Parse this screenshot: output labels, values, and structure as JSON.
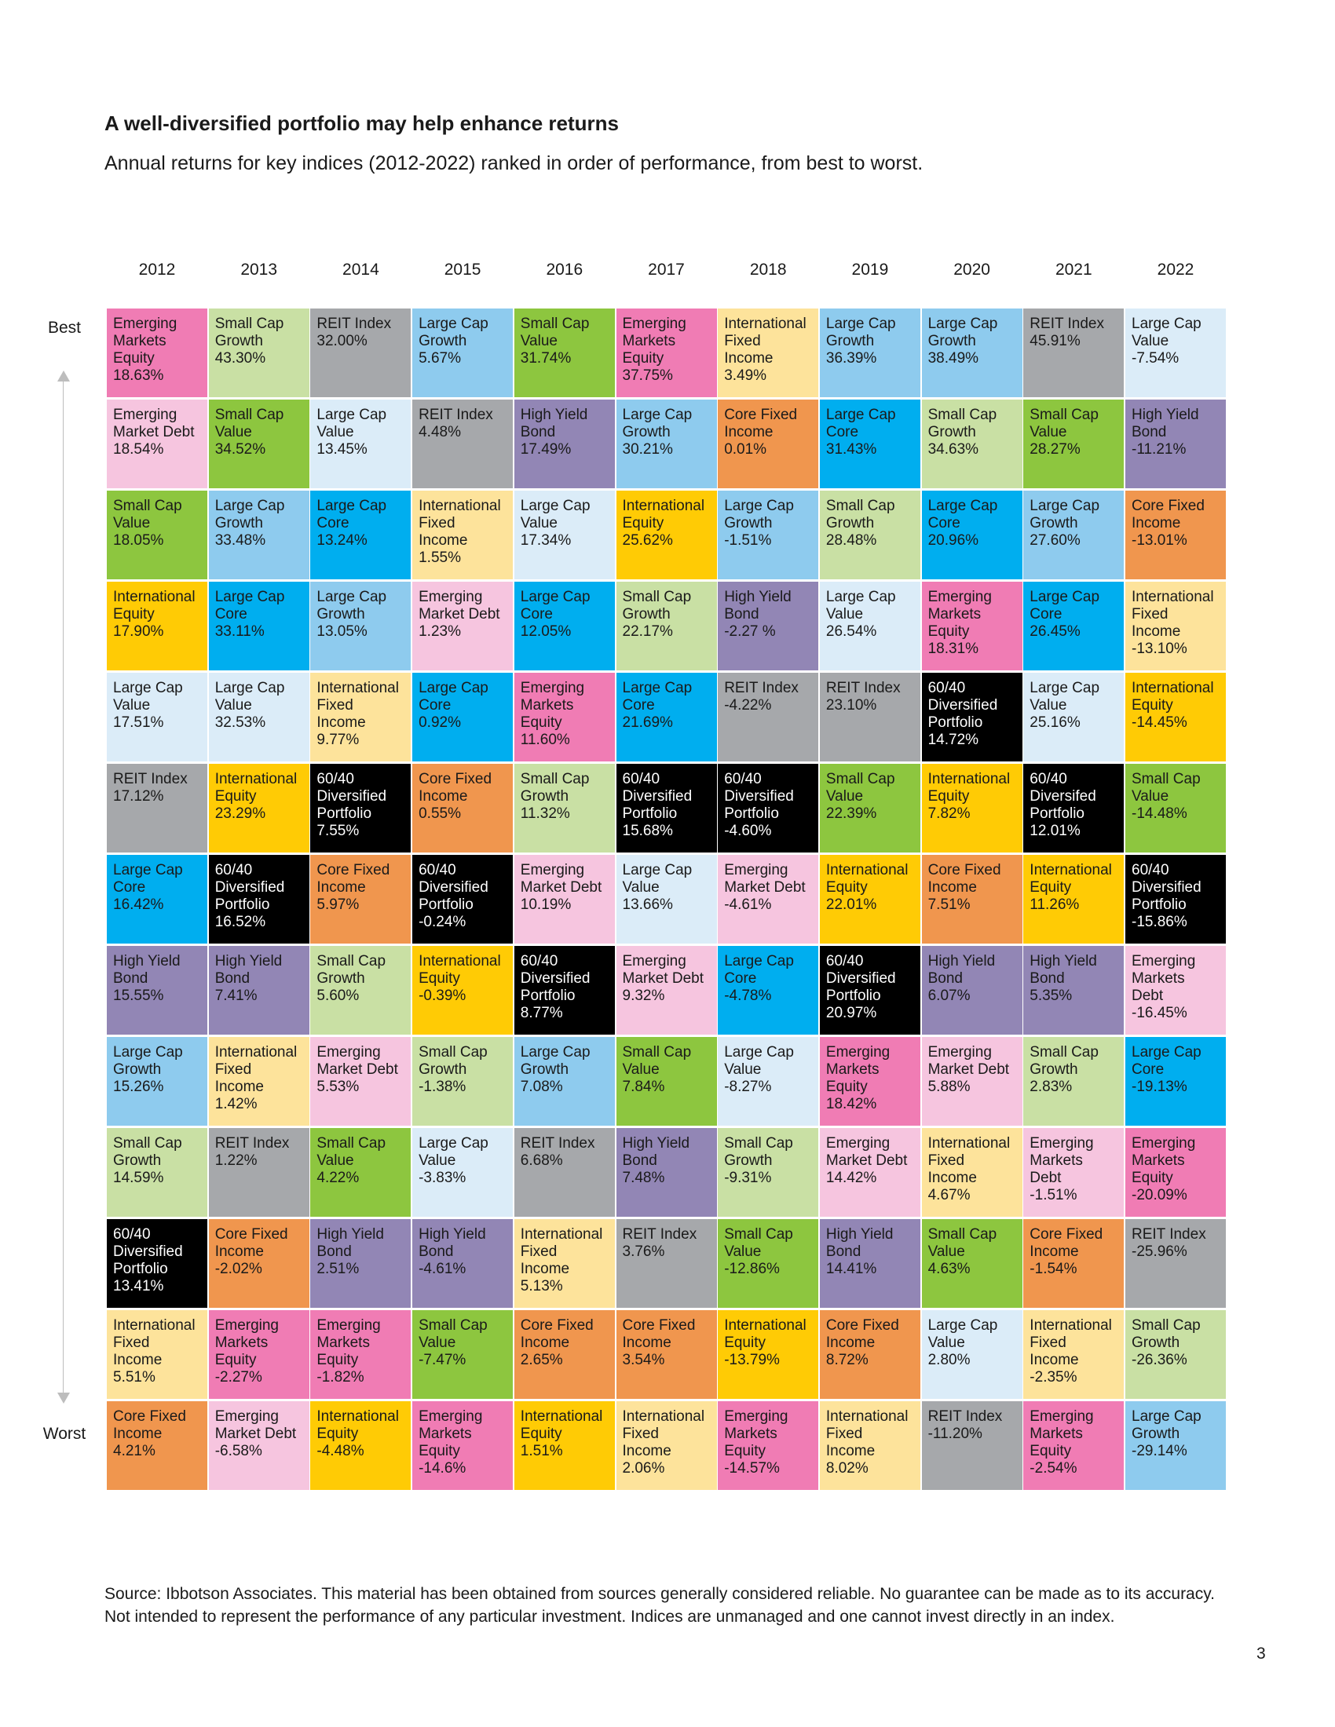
{
  "header": {
    "title": "A well-diversified portfolio may help enhance returns",
    "subtitle": "Annual returns for key indices (2012-2022) ranked in order of performance, from best to worst."
  },
  "rank_labels": {
    "best": "Best",
    "worst": "Worst"
  },
  "footnote": {
    "line1": "Source: Ibbotson Associates. This material has been obtained from sources generally considered reliable. No guarantee can be made as to its accuracy.",
    "line2": "Not intended to represent the performance of any particular investment. Indices are unmanaged and one cannot invest directly in an index."
  },
  "page_number": "3",
  "colors": {
    "em_eq": "#f07cb4",
    "em_debt": "#f6c5df",
    "sc_growth": "#c9e0a4",
    "sc_value": "#8dc63f",
    "reit": "#a6a8ab",
    "lc_growth": "#8ecbee",
    "lc_value": "#dbecf8",
    "lc_core": "#00aeef",
    "intl_fi": "#fde39b",
    "intl_eq": "#ffcb05",
    "core_fi": "#f0964e",
    "hy": "#9286b5",
    "div": "#000000"
  },
  "chart_data": {
    "type": "table",
    "title": "A well-diversified portfolio may help enhance returns",
    "subtitle": "Annual returns for key indices (2012-2022) ranked in order of performance, from best to worst.",
    "years": [
      "2012",
      "2013",
      "2014",
      "2015",
      "2016",
      "2017",
      "2018",
      "2019",
      "2020",
      "2021",
      "2022"
    ],
    "columns": [
      [
        {
          "name": "Emerging\nMarkets\nEquity",
          "value": "18.63%",
          "cat": "em_eq"
        },
        {
          "name": "Emerging\nMarket Debt",
          "value": "18.54%",
          "cat": "em_debt"
        },
        {
          "name": "Small Cap\nValue",
          "value": "18.05%",
          "cat": "sc_value"
        },
        {
          "name": "International\nEquity",
          "value": "17.90%",
          "cat": "intl_eq"
        },
        {
          "name": "Large Cap\nValue",
          "value": "17.51%",
          "cat": "lc_value"
        },
        {
          "name": "REIT Index",
          "value": "17.12%",
          "cat": "reit"
        },
        {
          "name": "Large Cap\nCore",
          "value": "16.42%",
          "cat": "lc_core"
        },
        {
          "name": "High Yield\nBond",
          "value": "15.55%",
          "cat": "hy"
        },
        {
          "name": "Large Cap\nGrowth",
          "value": "15.26%",
          "cat": "lc_growth"
        },
        {
          "name": "Small Cap\nGrowth",
          "value": "14.59%",
          "cat": "sc_growth"
        },
        {
          "name": "60/40\nDiversified\nPortfolio",
          "value": "13.41%",
          "cat": "div"
        },
        {
          "name": "International\nFixed Income",
          "value": "5.51%",
          "cat": "intl_fi"
        },
        {
          "name": "Core Fixed\nIncome",
          "value": "4.21%",
          "cat": "core_fi"
        }
      ],
      [
        {
          "name": "Small Cap\nGrowth",
          "value": "43.30%",
          "cat": "sc_growth"
        },
        {
          "name": "Small Cap\nValue",
          "value": "34.52%",
          "cat": "sc_value"
        },
        {
          "name": "Large Cap\nGrowth",
          "value": "33.48%",
          "cat": "lc_growth"
        },
        {
          "name": "Large Cap\nCore",
          "value": "33.11%",
          "cat": "lc_core"
        },
        {
          "name": "Large Cap\nValue",
          "value": "32.53%",
          "cat": "lc_value"
        },
        {
          "name": "International\nEquity",
          "value": "23.29%",
          "cat": "intl_eq"
        },
        {
          "name": "60/40\nDiversified\nPortfolio",
          "value": "16.52%",
          "cat": "div"
        },
        {
          "name": "High Yield\nBond",
          "value": "7.41%",
          "cat": "hy"
        },
        {
          "name": "International\nFixed Income",
          "value": "1.42%",
          "cat": "intl_fi"
        },
        {
          "name": "REIT Index",
          "value": "1.22%",
          "cat": "reit"
        },
        {
          "name": "Core Fixed\nIncome",
          "value": "-2.02%",
          "cat": "core_fi"
        },
        {
          "name": "Emerging\nMarkets\nEquity",
          "value": "-2.27%",
          "cat": "em_eq"
        },
        {
          "name": "Emerging\nMarket Debt",
          "value": "-6.58%",
          "cat": "em_debt"
        }
      ],
      [
        {
          "name": "REIT Index",
          "value": "32.00%",
          "cat": "reit"
        },
        {
          "name": "Large Cap\nValue 13.45%",
          "value": "",
          "cat": "lc_value"
        },
        {
          "name": "Large Cap\nCore",
          "value": "13.24%",
          "cat": "lc_core"
        },
        {
          "name": "Large Cap\nGrowth",
          "value": "13.05%",
          "cat": "lc_growth"
        },
        {
          "name": "International\nFixed Income",
          "value": "9.77%",
          "cat": "intl_fi"
        },
        {
          "name": "60/40\nDiversified\nPortfolio",
          "value": "7.55%",
          "cat": "div"
        },
        {
          "name": "Core Fixed\nIncome",
          "value": "5.97%",
          "cat": "core_fi"
        },
        {
          "name": "Small Cap\nGrowth",
          "value": "5.60%",
          "cat": "sc_growth"
        },
        {
          "name": "Emerging\nMarket Debt",
          "value": "5.53%",
          "cat": "em_debt"
        },
        {
          "name": "Small Cap\nValue",
          "value": "4.22%",
          "cat": "sc_value"
        },
        {
          "name": "High Yield\nBond",
          "value": "2.51%",
          "cat": "hy"
        },
        {
          "name": "Emerging\nMarkets\nEquity",
          "value": "-1.82%",
          "cat": "em_eq"
        },
        {
          "name": "International\nEquity",
          "value": "-4.48%",
          "cat": "intl_eq"
        }
      ],
      [
        {
          "name": "Large Cap\nGrowth",
          "value": "5.67%",
          "cat": "lc_growth"
        },
        {
          "name": "REIT Index",
          "value": "4.48%",
          "cat": "reit"
        },
        {
          "name": "International\nFixed Income",
          "value": "1.55%",
          "cat": "intl_fi"
        },
        {
          "name": "Emerging\nMarket Debt",
          "value": "1.23%",
          "cat": "em_debt"
        },
        {
          "name": "Large Cap\nCore",
          "value": "0.92%",
          "cat": "lc_core"
        },
        {
          "name": "Core Fixed\nIncome",
          "value": "0.55%",
          "cat": "core_fi"
        },
        {
          "name": "60/40\nDiversified\nPortfolio",
          "value": "-0.24%",
          "cat": "div"
        },
        {
          "name": "International\nEquity",
          "value": "-0.39%",
          "cat": "intl_eq"
        },
        {
          "name": "Small Cap\nGrowth",
          "value": "-1.38%",
          "cat": "sc_growth"
        },
        {
          "name": "Large Cap\nValue",
          "value": "-3.83%",
          "cat": "lc_value"
        },
        {
          "name": "High Yield\nBond",
          "value": "-4.61%",
          "cat": "hy"
        },
        {
          "name": "Small Cap\nValue",
          "value": "-7.47%",
          "cat": "sc_value"
        },
        {
          "name": "Emerging\nMarkets\nEquity",
          "value": "-14.6%",
          "cat": "em_eq"
        }
      ],
      [
        {
          "name": "Small Cap\nValue",
          "value": "31.74%",
          "cat": "sc_value"
        },
        {
          "name": "High Yield\nBond",
          "value": "17.49%",
          "cat": "hy"
        },
        {
          "name": "Large Cap\nValue",
          "value": "17.34%",
          "cat": "lc_value"
        },
        {
          "name": "Large Cap\nCore",
          "value": "12.05%",
          "cat": "lc_core"
        },
        {
          "name": "Emerging\nMarkets\nEquity",
          "value": "11.60%",
          "cat": "em_eq"
        },
        {
          "name": "Small Cap\nGrowth",
          "value": "11.32%",
          "cat": "sc_growth"
        },
        {
          "name": "Emerging\nMarket Debt",
          "value": "10.19%",
          "cat": "em_debt"
        },
        {
          "name": "60/40\nDiversified\nPortfolio",
          "value": "8.77%",
          "cat": "div"
        },
        {
          "name": "Large Cap\nGrowth",
          "value": "7.08%",
          "cat": "lc_growth"
        },
        {
          "name": "REIT Index",
          "value": "6.68%",
          "cat": "reit"
        },
        {
          "name": "International\nFixed Income",
          "value": "5.13%",
          "cat": "intl_fi"
        },
        {
          "name": "Core Fixed\nIncome",
          "value": "2.65%",
          "cat": "core_fi"
        },
        {
          "name": "International\nEquity",
          "value": "1.51%",
          "cat": "intl_eq"
        }
      ],
      [
        {
          "name": "Emerging\nMarkets\nEquity",
          "value": "37.75%",
          "cat": "em_eq"
        },
        {
          "name": "Large Cap\nGrowth",
          "value": "30.21%",
          "cat": "lc_growth"
        },
        {
          "name": "International\nEquity",
          "value": "25.62%",
          "cat": "intl_eq"
        },
        {
          "name": "Small Cap\nGrowth",
          "value": "22.17%",
          "cat": "sc_growth"
        },
        {
          "name": "Large Cap\nCore",
          "value": "21.69%",
          "cat": "lc_core"
        },
        {
          "name": "60/40\nDiversified\nPortfolio",
          "value": "15.68%",
          "cat": "div"
        },
        {
          "name": "Large Cap\nValue",
          "value": "13.66%",
          "cat": "lc_value"
        },
        {
          "name": "Emerging\nMarket Debt",
          "value": "9.32%",
          "cat": "em_debt"
        },
        {
          "name": "Small Cap\nValue",
          "value": "7.84%",
          "cat": "sc_value"
        },
        {
          "name": "High Yield\nBond",
          "value": "7.48%",
          "cat": "hy"
        },
        {
          "name": "REIT Index",
          "value": "3.76%",
          "cat": "reit"
        },
        {
          "name": "Core Fixed\nIncome",
          "value": "3.54%",
          "cat": "core_fi"
        },
        {
          "name": "International\nFixed Income",
          "value": "2.06%",
          "cat": "intl_fi"
        }
      ],
      [
        {
          "name": "International\nFixed Income",
          "value": "3.49%",
          "cat": "intl_fi"
        },
        {
          "name": "Core Fixed\nIncome",
          "value": "0.01%",
          "cat": "core_fi"
        },
        {
          "name": "Large Cap\nGrowth",
          "value": "-1.51%",
          "cat": "lc_growth"
        },
        {
          "name": "High Yield\nBond",
          "value": "-2.27 %",
          "cat": "hy"
        },
        {
          "name": "REIT Index",
          "value": "-4.22%",
          "cat": "reit"
        },
        {
          "name": "60/40\nDiversified\nPortfolio",
          "value": "-4.60%",
          "cat": "div"
        },
        {
          "name": "Emerging\nMarket Debt",
          "value": "-4.61%",
          "cat": "em_debt"
        },
        {
          "name": "Large Cap\nCore",
          "value": "-4.78%",
          "cat": "lc_core"
        },
        {
          "name": "Large Cap\nValue",
          "value": "-8.27%",
          "cat": "lc_value"
        },
        {
          "name": "Small Cap\nGrowth",
          "value": "-9.31%",
          "cat": "sc_growth"
        },
        {
          "name": "Small Cap\nValue",
          "value": "-12.86%",
          "cat": "sc_value"
        },
        {
          "name": "International\nEquity",
          "value": "-13.79%",
          "cat": "intl_eq"
        },
        {
          "name": "Emerging\nMarkets\nEquity",
          "value": "-14.57%",
          "cat": "em_eq"
        }
      ],
      [
        {
          "name": "Large Cap\nGrowth",
          "value": "36.39%",
          "cat": "lc_growth"
        },
        {
          "name": "Large Cap\nCore",
          "value": "31.43%",
          "cat": "lc_core"
        },
        {
          "name": "Small Cap\nGrowth",
          "value": "28.48%",
          "cat": "sc_growth"
        },
        {
          "name": "Large Cap\nValue",
          "value": "26.54%",
          "cat": "lc_value"
        },
        {
          "name": "REIT Index",
          "value": "23.10%",
          "cat": "reit"
        },
        {
          "name": "Small Cap\nValue",
          "value": "22.39%",
          "cat": "sc_value"
        },
        {
          "name": "International\nEquity",
          "value": "22.01%",
          "cat": "intl_eq"
        },
        {
          "name": "60/40\nDiversified\nPortfolio",
          "value": "20.97%",
          "cat": "div"
        },
        {
          "name": "Emerging\nMarkets\nEquity",
          "value": "18.42%",
          "cat": "em_eq"
        },
        {
          "name": "Emerging\nMarket Debt",
          "value": "14.42%",
          "cat": "em_debt"
        },
        {
          "name": "High Yield\nBond",
          "value": "14.41%",
          "cat": "hy"
        },
        {
          "name": "Core Fixed\nIncome",
          "value": "8.72%",
          "cat": "core_fi"
        },
        {
          "name": "International\nFixed Income",
          "value": "8.02%",
          "cat": "intl_fi"
        }
      ],
      [
        {
          "name": "Large Cap\nGrowth",
          "value": "38.49%",
          "cat": "lc_growth"
        },
        {
          "name": "Small Cap\nGrowth",
          "value": "34.63%",
          "cat": "sc_growth"
        },
        {
          "name": "Large Cap\nCore",
          "value": "20.96%",
          "cat": "lc_core"
        },
        {
          "name": "Emerging\nMarkets\nEquity",
          "value": "18.31%",
          "cat": "em_eq"
        },
        {
          "name": "60/40\nDiversified\nPortfolio",
          "value": "14.72%",
          "cat": "div"
        },
        {
          "name": "International\nEquity",
          "value": "7.82%",
          "cat": "intl_eq"
        },
        {
          "name": "Core Fixed\nIncome",
          "value": "7.51%",
          "cat": "core_fi"
        },
        {
          "name": "High Yield\nBond",
          "value": "6.07%",
          "cat": "hy"
        },
        {
          "name": "Emerging\nMarket Debt",
          "value": "5.88%",
          "cat": "em_debt"
        },
        {
          "name": "International\nFixed Income",
          "value": "4.67%",
          "cat": "intl_fi"
        },
        {
          "name": "Small Cap\nValue",
          "value": "4.63%",
          "cat": "sc_value"
        },
        {
          "name": "Large Cap\nValue",
          "value": "2.80%",
          "cat": "lc_value"
        },
        {
          "name": "REIT Index",
          "value": "-11.20%",
          "cat": "reit"
        }
      ],
      [
        {
          "name": "REIT Index",
          "value": "45.91%",
          "cat": "reit"
        },
        {
          "name": "Small Cap\nValue",
          "value": " 28.27%",
          "cat": "sc_value"
        },
        {
          "name": "Large Cap\nGrowth",
          "value": "27.60%",
          "cat": "lc_growth"
        },
        {
          "name": "Large Cap\nCore",
          "value": "26.45%",
          "cat": "lc_core"
        },
        {
          "name": "Large Cap\nValue",
          "value": "25.16%",
          "cat": "lc_value"
        },
        {
          "name": "60/40\nDiversifed\nPortfolio",
          "value": "12.01%",
          "cat": "div"
        },
        {
          "name": "International\nEquity",
          "value": "11.26%",
          "cat": "intl_eq"
        },
        {
          "name": "High Yield\nBond",
          "value": "5.35%",
          "cat": "hy"
        },
        {
          "name": "Small Cap\nGrowth",
          "value": "2.83%",
          "cat": "sc_growth"
        },
        {
          "name": "Emerging\nMarkets\nDebt",
          "value": "-1.51%",
          "cat": "em_debt"
        },
        {
          "name": "Core Fixed\nIncome",
          "value": "-1.54%",
          "cat": "core_fi"
        },
        {
          "name": "International\nFixed Income",
          "value": "-2.35%",
          "cat": "intl_fi"
        },
        {
          "name": "Emerging\nMarkets\nEquity",
          "value": "-2.54%",
          "cat": "em_eq"
        }
      ],
      [
        {
          "name": "Large Cap\nValue",
          "value": "-7.54%",
          "cat": "lc_value"
        },
        {
          "name": "High Yield\nBond",
          "value": "-11.21%",
          "cat": "hy"
        },
        {
          "name": "Core Fixed\nIncome",
          "value": "-13.01%",
          "cat": "core_fi"
        },
        {
          "name": "International\nFixed Income",
          "value": "-13.10%",
          "cat": "intl_fi"
        },
        {
          "name": "International\nEquity",
          "value": "-14.45%",
          "cat": "intl_eq"
        },
        {
          "name": "Small Cap\nValue",
          "value": "-14.48%",
          "cat": "sc_value"
        },
        {
          "name": "60/40\nDiversified\nPortfolio",
          "value": "-15.86%",
          "cat": "div"
        },
        {
          "name": "Emerging\nMarkets\nDebt",
          "value": "-16.45%",
          "cat": "em_debt"
        },
        {
          "name": "Large Cap\nCore",
          "value": "-19.13%",
          "cat": "lc_core"
        },
        {
          "name": "Emerging\nMarkets\nEquity",
          "value": "-20.09%",
          "cat": "em_eq"
        },
        {
          "name": "REIT Index",
          "value": "-25.96%",
          "cat": "reit"
        },
        {
          "name": "Small Cap\nGrowth",
          "value": "-26.36%",
          "cat": "sc_growth"
        },
        {
          "name": "Large Cap\nGrowth",
          "value": "-29.14%",
          "cat": "lc_growth"
        }
      ]
    ]
  }
}
